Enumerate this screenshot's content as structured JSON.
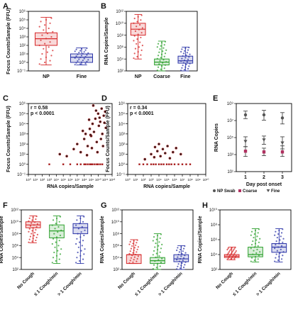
{
  "chart_data": [
    {
      "panel": "A",
      "type": "box",
      "ylabel": "Focus Counts/Sample (FFU)",
      "y_scale": "log",
      "ylim_exp": [
        -1,
        6
      ],
      "categories": [
        "NP",
        "Fine"
      ],
      "colors": [
        "#d62728",
        "#2c35a8"
      ],
      "boxes": [
        {
          "q1": 100,
          "median": 600,
          "q3": 3000,
          "min": 0.5,
          "max": 200000
        },
        {
          "q1": 1,
          "median": 4,
          "q3": 10,
          "min": 0.5,
          "max": 50
        }
      ],
      "tick_labels": [
        "10⁻¹",
        "10⁰",
        "10¹",
        "10²",
        "10³",
        "10⁴",
        "10⁵",
        "10⁶"
      ]
    },
    {
      "panel": "B",
      "type": "box",
      "ylabel": "RNA Copies/Sample",
      "y_scale": "log",
      "ylim_exp": [
        2,
        12
      ],
      "categories": [
        "NP",
        "Coarse",
        "Fine"
      ],
      "colors": [
        "#d62728",
        "#2ca02c",
        "#2c35a8"
      ],
      "boxes": [
        {
          "q1": 100000000.0,
          "median": 1000000000.0,
          "q3": 10000000000.0,
          "min": 10000.0,
          "max": 300000000000.0
        },
        {
          "q1": 1000.0,
          "median": 3000.0,
          "q3": 10000.0,
          "min": 100.0,
          "max": 10000000.0
        },
        {
          "q1": 2000.0,
          "median": 5000.0,
          "q3": 30000.0,
          "min": 100.0,
          "max": 1000000.0
        }
      ],
      "tick_labels": [
        "10²",
        "10⁴",
        "10⁶",
        "10⁸",
        "10¹⁰",
        "10¹²"
      ]
    },
    {
      "panel": "C",
      "type": "scatter",
      "xlabel": "RNA copies/Sample",
      "ylabel": "Focus Counts/Sample (FFU)",
      "x_scale": "log",
      "y_scale": "log",
      "xlim_exp": [
        0,
        12
      ],
      "ylim_exp": [
        -1,
        6
      ],
      "annotation": [
        "r = 0.58",
        "p < 0.0001"
      ],
      "x_tick_labels": [
        "10⁰",
        "10¹",
        "10²",
        "10³",
        "10⁴",
        "10⁵",
        "10⁶",
        "10⁷",
        "10⁸",
        "10⁹",
        "10¹⁰",
        "10¹¹",
        "10¹²"
      ],
      "y_tick_labels": [
        "10⁻¹",
        "10⁰",
        "10¹",
        "10²",
        "10³",
        "10⁴",
        "10⁵",
        "10⁶"
      ],
      "points": [
        [
          3,
          0
        ],
        [
          5,
          0
        ],
        [
          6,
          0
        ],
        [
          7,
          0
        ],
        [
          7.5,
          0
        ],
        [
          8,
          0
        ],
        [
          8.2,
          0
        ],
        [
          8.5,
          0
        ],
        [
          8.8,
          0
        ],
        [
          9,
          0
        ],
        [
          9.2,
          0
        ],
        [
          9.5,
          0
        ],
        [
          9.8,
          0
        ],
        [
          10,
          0
        ],
        [
          10.3,
          0
        ],
        [
          10.6,
          0
        ],
        [
          4.5,
          1
        ],
        [
          5.5,
          0.8
        ],
        [
          6.5,
          1.5
        ],
        [
          7,
          2
        ],
        [
          7.5,
          1.2
        ],
        [
          8,
          2.5
        ],
        [
          8.2,
          3
        ],
        [
          8.5,
          1.8
        ],
        [
          8.8,
          3.5
        ],
        [
          9,
          2.8
        ],
        [
          9.2,
          4
        ],
        [
          9.4,
          3.2
        ],
        [
          9.6,
          4.5
        ],
        [
          9.8,
          2.2
        ],
        [
          10,
          5
        ],
        [
          10.1,
          3.8
        ],
        [
          10.3,
          4.2
        ],
        [
          10.5,
          5.5
        ],
        [
          10.6,
          3
        ],
        [
          10.8,
          4.8
        ],
        [
          11,
          5.2
        ],
        [
          9.3,
          5.8
        ],
        [
          8.7,
          4.4
        ],
        [
          7.8,
          3.3
        ],
        [
          10.4,
          2.5
        ],
        [
          9.9,
          1.2
        ],
        [
          8.4,
          0.9
        ],
        [
          10.7,
          1.8
        ],
        [
          11.1,
          3.6
        ],
        [
          9.7,
          5.3
        ],
        [
          10.2,
          4.6
        ],
        [
          9.1,
          1.6
        ],
        [
          8.9,
          2.9
        ],
        [
          10.9,
          4.1
        ]
      ]
    },
    {
      "panel": "D",
      "type": "scatter",
      "xlabel": "RNA copies/Sample",
      "ylabel": "Focus Counts/Sample (FFU)",
      "x_scale": "log",
      "y_scale": "log",
      "xlim_exp": [
        0,
        10
      ],
      "ylim_exp": [
        -1,
        6
      ],
      "annotation": [
        "r = 0.34",
        "p < 0.0001"
      ],
      "x_tick_labels": [
        "10⁰",
        "10¹",
        "10²",
        "10³",
        "10⁴",
        "10⁵",
        "10⁶",
        "10⁷",
        "10⁸",
        "10⁹",
        "10¹⁰"
      ],
      "y_tick_labels": [
        "10⁻¹",
        "10⁰",
        "10¹",
        "10²",
        "10³",
        "10⁴",
        "10⁵",
        "10⁶"
      ],
      "points": [
        [
          1.5,
          0
        ],
        [
          2,
          0
        ],
        [
          2.5,
          0
        ],
        [
          3,
          0
        ],
        [
          3.3,
          0
        ],
        [
          3.6,
          0
        ],
        [
          4,
          0
        ],
        [
          4.3,
          0
        ],
        [
          4.6,
          0
        ],
        [
          5,
          0
        ],
        [
          5.3,
          0
        ],
        [
          5.6,
          0
        ],
        [
          6,
          0
        ],
        [
          6.5,
          0
        ],
        [
          7,
          0
        ],
        [
          7.5,
          0
        ],
        [
          8,
          0
        ],
        [
          2.2,
          0.5
        ],
        [
          3,
          1
        ],
        [
          3.4,
          0.7
        ],
        [
          3.8,
          1.3
        ],
        [
          4.2,
          0.8
        ],
        [
          4.5,
          1.5
        ],
        [
          4.8,
          1.1
        ],
        [
          5.1,
          1.8
        ],
        [
          5.4,
          0.6
        ],
        [
          5.8,
          1.2
        ],
        [
          6.2,
          1.6
        ],
        [
          4,
          2
        ],
        [
          3.5,
          1.7
        ],
        [
          6.8,
          1
        ]
      ]
    },
    {
      "panel": "E",
      "type": "errorbar",
      "xlabel": "Day post onset",
      "ylabel": "RNA Copies",
      "y_scale": "log",
      "ylim_exp": [
        1,
        10
      ],
      "x": [
        1,
        2,
        3
      ],
      "x_tick_labels": [
        "1",
        "2",
        "3"
      ],
      "y_tick_labels": [
        "10¹",
        "10³",
        "10⁵",
        "10⁷",
        "10⁹"
      ],
      "legend": [
        "NP Swab",
        "Coarse",
        "Fine"
      ],
      "series": [
        {
          "name": "NP Swab",
          "marker": "circle",
          "color": "#555555",
          "values": [
            8.5,
            8.5,
            8.1
          ],
          "low": [
            8.0,
            7.8,
            7.3
          ],
          "high": [
            9.0,
            9.1,
            8.8
          ]
        },
        {
          "name": "Coarse",
          "marker": "square",
          "color": "#b03060",
          "values": [
            3.7,
            3.6,
            3.6
          ],
          "low": [
            3.0,
            3.1,
            3.0
          ],
          "high": [
            4.3,
            4.1,
            4.4
          ]
        },
        {
          "name": "Fine",
          "marker": "triangle",
          "color": "#555555",
          "values": [
            5.0,
            5.2,
            4.8
          ],
          "low": [
            4.3,
            4.6,
            4.0
          ],
          "high": [
            5.6,
            5.7,
            5.6
          ]
        }
      ]
    },
    {
      "panel": "F",
      "type": "box",
      "ylabel": "RNA Copies/Sample",
      "y_scale": "log",
      "ylim_exp": [
        2,
        12
      ],
      "categories": [
        "No Cough",
        "≤ 1 Cough/min",
        "> 1 Cough/min"
      ],
      "colors": [
        "#d62728",
        "#2ca02c",
        "#2c35a8"
      ],
      "boxes": [
        {
          "q1": 1000000000.0,
          "median": 3000000000.0,
          "q3": 10000000000.0,
          "min": 3000000.0,
          "max": 100000000000.0
        },
        {
          "q1": 20000000.0,
          "median": 300000000.0,
          "q3": 3000000000.0,
          "min": 1000.0,
          "max": 100000000000.0
        },
        {
          "q1": 100000000.0,
          "median": 1000000000.0,
          "q3": 5000000000.0,
          "min": 1000.0,
          "max": 100000000000.0
        }
      ],
      "tick_labels": [
        "10²",
        "10⁴",
        "10⁶",
        "10⁸",
        "10¹⁰",
        "10¹²"
      ]
    },
    {
      "panel": "G",
      "type": "box",
      "ylabel": "RNA Copies/Sample",
      "y_scale": "log",
      "ylim_exp": [
        2,
        12
      ],
      "categories": [
        "No Cough",
        "≤ 1 Cough/min",
        "> 1 Cough/min"
      ],
      "colors": [
        "#d62728",
        "#2ca02c",
        "#2c35a8"
      ],
      "boxes": [
        {
          "q1": 1000.0,
          "median": 30000.0,
          "q3": 30000.0,
          "min": 1000.0,
          "max": 10000000.0
        },
        {
          "q1": 1000.0,
          "median": 3000.0,
          "q3": 10000.0,
          "min": 100.0,
          "max": 100000000.0
        },
        {
          "q1": 2000.0,
          "median": 6000.0,
          "q3": 30000.0,
          "min": 100.0,
          "max": 1000000.0
        }
      ],
      "tick_labels": [
        "10²",
        "10⁴",
        "10⁶",
        "10⁸",
        "10¹⁰",
        "10¹²"
      ]
    },
    {
      "panel": "H",
      "type": "box",
      "ylabel": "RNA Copies/Sample",
      "y_scale": "log",
      "ylim_exp": [
        2,
        10
      ],
      "categories": [
        "No Cough",
        "≤ 1 Cough/min",
        "> 1 Cough/min"
      ],
      "colors": [
        "#d62728",
        "#2ca02c",
        "#2c35a8"
      ],
      "boxes": [
        {
          "q1": 4000.0,
          "median": 6000.0,
          "q3": 10000.0,
          "min": 2000.0,
          "max": 100000.0
        },
        {
          "q1": 5000.0,
          "median": 10000.0,
          "q3": 100000.0,
          "min": 1000.0,
          "max": 30000000.0
        },
        {
          "q1": 20000.0,
          "median": 100000.0,
          "q3": 300000.0,
          "min": 1000.0,
          "max": 30000000.0
        }
      ],
      "tick_labels": [
        "10²",
        "10⁴",
        "10⁶",
        "10⁸",
        "10¹⁰"
      ]
    }
  ]
}
